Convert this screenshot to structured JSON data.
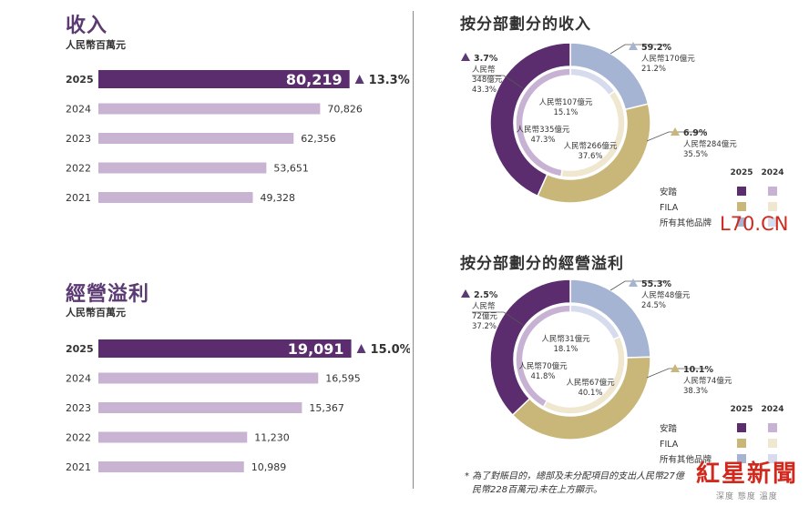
{
  "revenue": {
    "title": "收入",
    "unit": "人民幣百萬元",
    "growth_label": "13.3%",
    "chart_data": {
      "type": "bar",
      "orientation": "horizontal",
      "categories": [
        "2025",
        "2024",
        "2023",
        "2022",
        "2021"
      ],
      "values": [
        80219,
        70826,
        62356,
        53651,
        49328
      ],
      "value_labels": [
        "80,219",
        "70,826",
        "62,356",
        "53,651",
        "49,328"
      ],
      "highlight_index": 0,
      "xlim": [
        0,
        110000
      ]
    }
  },
  "op_profit": {
    "title": "經營溢利",
    "unit": "人民幣百萬元",
    "growth_label": "15.0%",
    "chart_data": {
      "type": "bar",
      "orientation": "horizontal",
      "categories": [
        "2025",
        "2024",
        "2023",
        "2022",
        "2021"
      ],
      "values": [
        19091,
        16595,
        15367,
        11230,
        10989
      ],
      "value_labels": [
        "19,091",
        "16,595",
        "15,367",
        "11,230",
        "10,989"
      ],
      "highlight_index": 0,
      "xlim": [
        0,
        26000
      ]
    }
  },
  "seg_revenue": {
    "title": "按分部劃分的收入",
    "chart_data": {
      "type": "pie",
      "style": "nested-donut",
      "segments": [
        "安踏",
        "FILA",
        "所有其他品牌"
      ],
      "outer_2025_percent": [
        43.3,
        35.5,
        21.2
      ],
      "inner_2024_percent": [
        47.3,
        37.6,
        15.1
      ],
      "outer_labels": [
        {
          "growth": "3.7%",
          "amount": "人民幣",
          "amount2": "348億元",
          "share": "43.3%"
        },
        {
          "growth": "6.9%",
          "amount": "人民幣284億元",
          "share": "35.5%"
        },
        {
          "growth": "59.2%",
          "amount": "人民幣170億元",
          "share": "21.2%"
        }
      ],
      "inner_labels": [
        {
          "amount": "人民幣335億元",
          "share": "47.3%"
        },
        {
          "amount": "人民幣266億元",
          "share": "37.6%"
        },
        {
          "amount": "人民幣107億元",
          "share": "15.1%"
        }
      ]
    }
  },
  "seg_profit": {
    "title": "按分部劃分的經營溢利",
    "chart_data": {
      "type": "pie",
      "style": "nested-donut",
      "segments": [
        "安踏",
        "FILA",
        "所有其他品牌"
      ],
      "outer_2025_percent": [
        37.2,
        38.3,
        24.5
      ],
      "inner_2024_percent": [
        41.8,
        40.1,
        18.1
      ],
      "outer_labels": [
        {
          "growth": "2.5%",
          "amount": "人民幣",
          "amount2": "72億元",
          "share": "37.2%"
        },
        {
          "growth": "10.1%",
          "amount": "人民幣74億元",
          "share": "38.3%"
        },
        {
          "growth": "55.3%",
          "amount": "人民幣48億元",
          "share": "24.5%"
        }
      ],
      "inner_labels": [
        {
          "amount": "人民幣70億元",
          "share": "41.8%"
        },
        {
          "amount": "人民幣67億元",
          "share": "40.1%"
        },
        {
          "amount": "人民幣31億元",
          "share": "18.1%"
        }
      ]
    }
  },
  "legend": {
    "years": [
      "2025",
      "2024"
    ],
    "items": [
      "安踏",
      "FILA",
      "所有其他品牌"
    ]
  },
  "colors": {
    "anta_2025": "#5b2d6e",
    "anta_2024": "#c8b2d3",
    "fila_2025": "#c9b779",
    "fila_2024": "#efe7cf",
    "other_2025": "#a4b4d2",
    "other_2024": "#d6dced",
    "bar_highlight": "#5b2d6e",
    "bar_normal": "#c8b3d2",
    "arrow": "#5b3a73"
  },
  "footnote": {
    "line1": "* 為了對賬目的，總部及未分配項目的支出人民幣27億",
    "line2": "民幣228百萬元)未在上方顯示。"
  },
  "watermark": {
    "brand": "L70.CN",
    "news": "紅星新聞",
    "tagline": "深度 態度 溫度"
  }
}
